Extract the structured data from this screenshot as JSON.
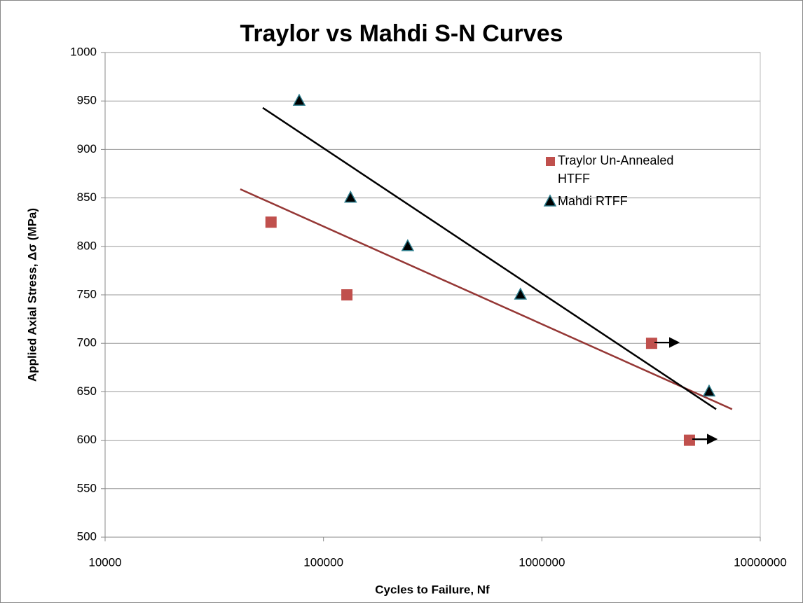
{
  "chart_data": {
    "type": "scatter",
    "title": "Traylor vs Mahdi S-N Curves",
    "x_label": "Cycles to Failure, Nf",
    "y_label": "Applied Axial Stress, Δσ (MPa)",
    "xscale": "log",
    "xlim": [
      10000,
      10000000
    ],
    "xticks": [
      10000,
      100000,
      1000000,
      10000000
    ],
    "ylim": [
      500,
      1000
    ],
    "yticks": [
      500,
      550,
      600,
      650,
      700,
      750,
      800,
      850,
      900,
      950,
      1000
    ],
    "grid": true,
    "legend": "upper right",
    "series": [
      {
        "name": "Traylor Un-Annealed HTFF",
        "color": "#c0504d",
        "marker": "square",
        "x": [
          57500,
          128000,
          3180000,
          4740000
        ],
        "values": [
          825,
          750,
          700,
          600
        ]
      },
      {
        "name": "Mahdi RTFF",
        "color": "#000000",
        "marker": "triangle",
        "x": [
          77400,
          133000,
          243000,
          798000,
          5830000
        ],
        "values": [
          950,
          850,
          800,
          750,
          650
        ]
      }
    ],
    "trendlines": [
      {
        "color": "#953735",
        "x": [
          41600,
          7430000
        ],
        "values": [
          859,
          632
        ]
      },
      {
        "color": "#000000",
        "x": [
          52700,
          6280000
        ],
        "values": [
          943,
          632
        ]
      }
    ]
  }
}
